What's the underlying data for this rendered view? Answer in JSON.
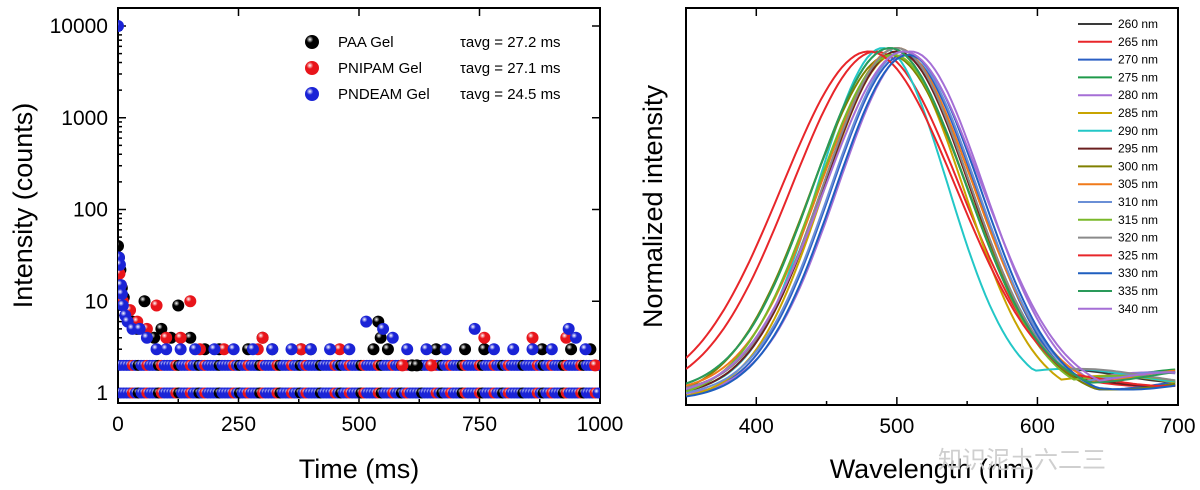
{
  "chart_data": [
    {
      "type": "scatter",
      "xlabel": "Time (ms)",
      "ylabel": "Intensity (counts)",
      "xlim": [
        0,
        1000
      ],
      "ylim": [
        1,
        10000
      ],
      "yscale": "log",
      "xticks": [
        "0",
        "250",
        "500",
        "750",
        "1000"
      ],
      "yticks": [
        "1",
        "10",
        "100",
        "1000",
        "10000"
      ],
      "legend_position": "top-right",
      "series": [
        {
          "name": "PAA Gel",
          "annotation": "τavg = 27.2 ms",
          "color": "#000000",
          "points": [
            [
              0,
              40
            ],
            [
              2,
              30
            ],
            [
              5,
              22
            ],
            [
              8,
              14
            ],
            [
              12,
              11
            ],
            [
              20,
              8
            ],
            [
              30,
              6
            ],
            [
              40,
              5
            ],
            [
              55,
              10
            ],
            [
              75,
              4
            ],
            [
              90,
              5
            ],
            [
              110,
              4
            ],
            [
              125,
              9
            ],
            [
              150,
              4
            ],
            [
              180,
              3
            ],
            [
              210,
              3
            ],
            [
              270,
              3
            ],
            [
              300,
              4
            ],
            [
              320,
              3
            ],
            [
              380,
              3
            ],
            [
              400,
              3
            ],
            [
              530,
              3
            ],
            [
              540,
              6
            ],
            [
              545,
              4
            ],
            [
              560,
              3
            ],
            [
              610,
              2
            ],
            [
              620,
              2
            ],
            [
              660,
              3
            ],
            [
              720,
              3
            ],
            [
              760,
              3
            ],
            [
              880,
              3
            ],
            [
              940,
              3
            ],
            [
              980,
              3
            ]
          ]
        },
        {
          "name": "PNIPAM Gel",
          "annotation": "τavg = 27.1 ms",
          "color": "#e8141a",
          "points": [
            [
              0,
              22
            ],
            [
              3,
              20
            ],
            [
              6,
              15
            ],
            [
              10,
              10
            ],
            [
              25,
              8
            ],
            [
              40,
              6
            ],
            [
              60,
              5
            ],
            [
              80,
              9
            ],
            [
              100,
              4
            ],
            [
              130,
              4
            ],
            [
              150,
              10
            ],
            [
              170,
              3
            ],
            [
              220,
              3
            ],
            [
              290,
              3
            ],
            [
              300,
              4
            ],
            [
              380,
              3
            ],
            [
              460,
              3
            ],
            [
              590,
              2
            ],
            [
              650,
              2
            ],
            [
              760,
              4
            ],
            [
              860,
              4
            ],
            [
              930,
              4
            ],
            [
              990,
              2
            ]
          ]
        },
        {
          "name": "PNDEAM Gel",
          "annotation": "τavg = 24.5 ms",
          "color": "#1a23d6",
          "points": [
            [
              0,
              10000
            ],
            [
              2,
              30
            ],
            [
              4,
              25
            ],
            [
              6,
              15
            ],
            [
              8,
              12
            ],
            [
              10,
              9
            ],
            [
              15,
              7
            ],
            [
              20,
              6
            ],
            [
              30,
              5
            ],
            [
              45,
              5
            ],
            [
              60,
              4
            ],
            [
              80,
              3
            ],
            [
              100,
              3
            ],
            [
              130,
              3
            ],
            [
              160,
              3
            ],
            [
              200,
              3
            ],
            [
              240,
              3
            ],
            [
              280,
              3
            ],
            [
              320,
              3
            ],
            [
              360,
              3
            ],
            [
              400,
              3
            ],
            [
              440,
              3
            ],
            [
              480,
              3
            ],
            [
              515,
              6
            ],
            [
              550,
              5
            ],
            [
              570,
              4
            ],
            [
              600,
              3
            ],
            [
              640,
              3
            ],
            [
              680,
              3
            ],
            [
              740,
              5
            ],
            [
              780,
              3
            ],
            [
              820,
              3
            ],
            [
              860,
              3
            ],
            [
              900,
              3
            ],
            [
              935,
              5
            ],
            [
              950,
              4
            ],
            [
              970,
              3
            ]
          ]
        }
      ],
      "baseline_rows": [
        1,
        2
      ]
    },
    {
      "type": "line",
      "xlabel": "Wavelength (nm)",
      "ylabel": "Normalized intensity",
      "xlim": [
        350,
        700
      ],
      "xticks": [
        "400",
        "500",
        "600",
        "700"
      ],
      "legend_position": "top-right",
      "series": [
        {
          "name": "260 nm",
          "color": "#3a3a3a",
          "peak": 500,
          "width": 52
        },
        {
          "name": "265 nm",
          "color": "#e8262a",
          "peak": 485,
          "width": 60
        },
        {
          "name": "270 nm",
          "color": "#2a5fc4",
          "peak": 505,
          "width": 52
        },
        {
          "name": "275 nm",
          "color": "#1f9a4a",
          "peak": 495,
          "width": 54
        },
        {
          "name": "280 nm",
          "color": "#a56fd6",
          "peak": 510,
          "width": 52
        },
        {
          "name": "285 nm",
          "color": "#c8a400",
          "peak": 498,
          "width": 50
        },
        {
          "name": "290 nm",
          "color": "#23c7c7",
          "peak": 490,
          "width": 46
        },
        {
          "name": "295 nm",
          "color": "#6b1f1f",
          "peak": 500,
          "width": 52
        },
        {
          "name": "300 nm",
          "color": "#808000",
          "peak": 495,
          "width": 56
        },
        {
          "name": "305 nm",
          "color": "#f07a1a",
          "peak": 500,
          "width": 54
        },
        {
          "name": "310 nm",
          "color": "#6a8fd6",
          "peak": 505,
          "width": 52
        },
        {
          "name": "315 nm",
          "color": "#7ab82a",
          "peak": 497,
          "width": 54
        },
        {
          "name": "320 nm",
          "color": "#8a8a8a",
          "peak": 500,
          "width": 52
        },
        {
          "name": "325 nm",
          "color": "#e8262a",
          "peak": 480,
          "width": 62
        },
        {
          "name": "330 nm",
          "color": "#1f5fbf",
          "peak": 508,
          "width": 52
        },
        {
          "name": "335 nm",
          "color": "#2a9a5a",
          "peak": 495,
          "width": 54
        },
        {
          "name": "340 nm",
          "color": "#a56fd6",
          "peak": 505,
          "width": 56
        }
      ]
    }
  ],
  "watermark": "知识泥土六二三"
}
